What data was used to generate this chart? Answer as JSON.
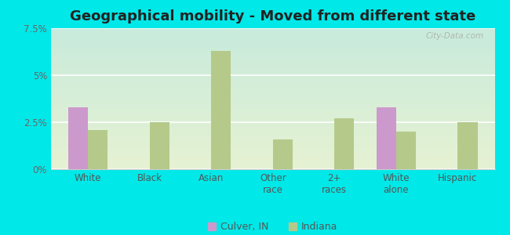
{
  "title": "Geographical mobility - Moved from different state",
  "categories": [
    "White",
    "Black",
    "Asian",
    "Other\nrace",
    "2+\nraces",
    "White\nalone",
    "Hispanic"
  ],
  "culver_values": [
    3.3,
    0,
    0,
    0,
    0,
    3.3,
    0
  ],
  "indiana_values": [
    2.1,
    2.5,
    6.3,
    1.6,
    2.7,
    2.0,
    2.5
  ],
  "culver_color": "#cc99cc",
  "indiana_color": "#b5c98a",
  "ylim": [
    0,
    7.5
  ],
  "yticks": [
    0,
    2.5,
    5.0,
    7.5
  ],
  "ytick_labels": [
    "0%",
    "2.5%",
    "5%",
    "7.5%"
  ],
  "outer_background": "#00e8e8",
  "bar_width": 0.32,
  "title_fontsize": 13,
  "legend_fontsize": 9,
  "tick_fontsize": 8.5
}
